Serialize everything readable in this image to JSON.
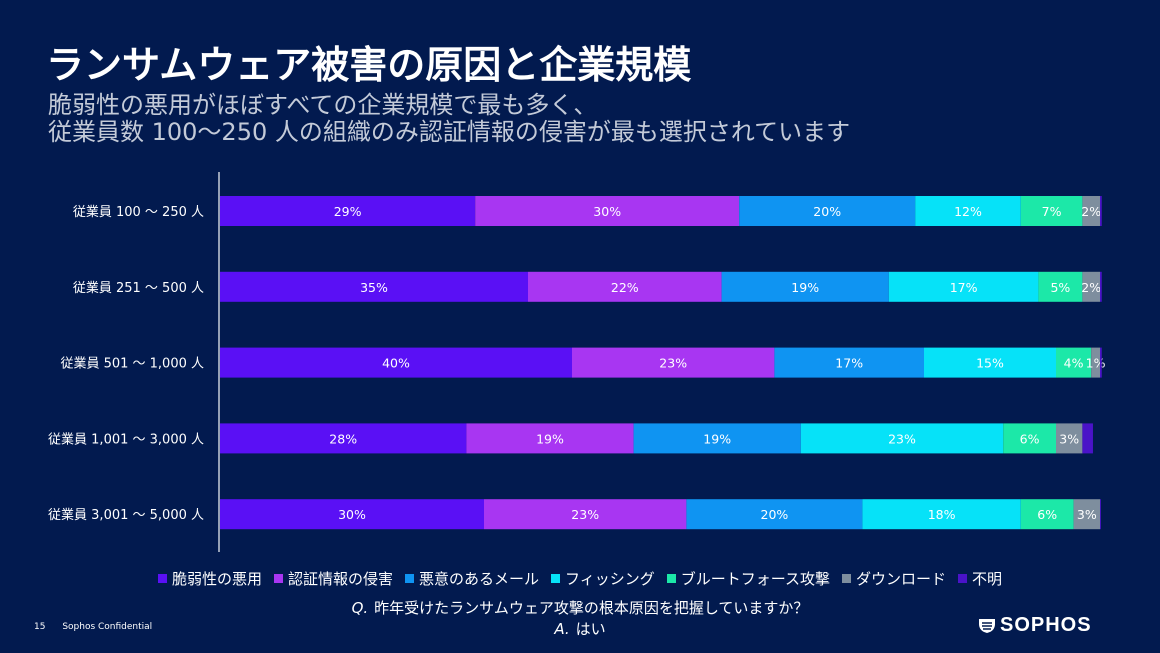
{
  "header": {
    "title": "ランサムウェア被害の原因と企業規模",
    "subtitle_line1": "脆弱性の悪用がほぼすべての企業規模で最も多く、",
    "subtitle_line2": "従業員数 100～250 人の組織のみ認証情報の侵害が最も選択されています"
  },
  "chart_data": {
    "type": "bar",
    "orientation": "horizontal",
    "stacked": true,
    "normalized": true,
    "title": "ランサムウェア被害の原因と企業規模",
    "xlabel": "",
    "ylabel": "",
    "xlim": [
      0,
      100
    ],
    "grid": false,
    "legend_position": "bottom",
    "categories": [
      "従業員 100 ～ 250 人",
      "従業員 251 ～ 500 人",
      "従業員 501 ～ 1,000 人",
      "従業員 1,001 ～ 3,000 人",
      "従業員 3,001 ～ 5,000 人"
    ],
    "series": [
      {
        "name": "脆弱性の悪用",
        "color": "#5a10f5",
        "values": [
          29,
          35,
          40,
          28,
          30
        ],
        "labels": [
          "29%",
          "35%",
          "40%",
          "28%",
          "30%"
        ]
      },
      {
        "name": "認証情報の侵害",
        "color": "#a836f2",
        "values": [
          30,
          22,
          23,
          19,
          23
        ],
        "labels": [
          "30%",
          "22%",
          "23%",
          "19%",
          "23%"
        ]
      },
      {
        "name": "悪意のあるメール",
        "color": "#0f94f2",
        "values": [
          20,
          19,
          17,
          19,
          20
        ],
        "labels": [
          "20%",
          "19%",
          "17%",
          "19%",
          "20%"
        ]
      },
      {
        "name": "フィッシング",
        "color": "#06e2f8",
        "values": [
          12,
          17,
          15,
          23,
          18
        ],
        "labels": [
          "12%",
          "17%",
          "15%",
          "23%",
          "18%"
        ]
      },
      {
        "name": "ブルートフォース攻撃",
        "color": "#1ce8a8",
        "values": [
          7,
          5,
          4,
          6,
          6
        ],
        "labels": [
          "7%",
          "5%",
          "4%",
          "6%",
          "6%"
        ]
      },
      {
        "name": "ダウンロード",
        "color": "#7e8e9e",
        "values": [
          2,
          2,
          1,
          3,
          3
        ],
        "labels": [
          "2%",
          "2%",
          "1%",
          "3%",
          "3%"
        ]
      },
      {
        "name": "不明",
        "color": "#4a13c8",
        "values": [
          0.2,
          0.2,
          0.2,
          1.2,
          0.1
        ],
        "labels": [
          "",
          "",
          "",
          "",
          ""
        ]
      }
    ]
  },
  "question": {
    "q_prefix": "Q.",
    "q_text": "昨年受けたランサムウェア攻撃の根本原因を把握していますか？",
    "a_prefix": "A.",
    "a_text": "はい"
  },
  "footer": {
    "page_number": "15",
    "confidential": "Sophos Confidential",
    "brand": "SOPHOS"
  }
}
